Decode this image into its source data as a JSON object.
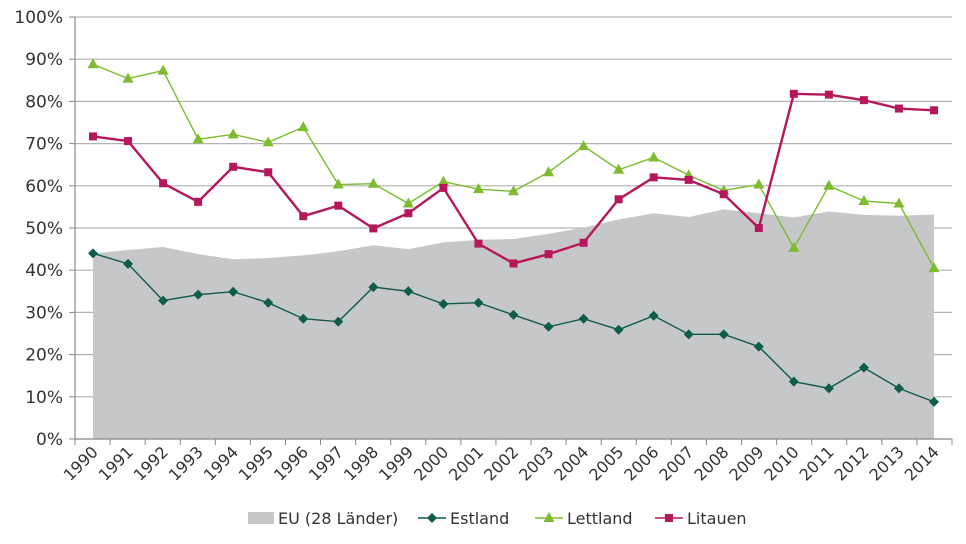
{
  "chart_data": {
    "type": "line",
    "title": "",
    "xlabel": "",
    "ylabel": "",
    "ylim": [
      0,
      100
    ],
    "y_ticks": [
      "0%",
      "10%",
      "20%",
      "30%",
      "40%",
      "50%",
      "60%",
      "70%",
      "80%",
      "90%",
      "100%"
    ],
    "grid": true,
    "legend_position": "bottom",
    "categories": [
      "1990",
      "1991",
      "1992",
      "1993",
      "1994",
      "1995",
      "1996",
      "1997",
      "1998",
      "1999",
      "2000",
      "2001",
      "2002",
      "2003",
      "2004",
      "2005",
      "2006",
      "2007",
      "2008",
      "2009",
      "2010",
      "2011",
      "2012",
      "2013",
      "2014"
    ],
    "series": [
      {
        "name": "EU (28 Länder)",
        "kind": "area",
        "color": "#c6c7c8",
        "values": [
          44.0,
          44.8,
          45.5,
          43.8,
          42.6,
          42.9,
          43.5,
          44.5,
          45.9,
          45.0,
          46.6,
          47.2,
          47.4,
          48.6,
          50.1,
          52.0,
          53.5,
          52.6,
          54.4,
          53.5,
          52.5,
          53.9,
          53.1,
          52.9,
          53.2
        ]
      },
      {
        "name": "Estland",
        "kind": "line",
        "marker": "diamond",
        "color": "#0e5c4a",
        "values": [
          44.0,
          41.5,
          32.8,
          34.2,
          34.9,
          32.3,
          28.5,
          27.8,
          36.0,
          35.0,
          32.0,
          32.3,
          29.4,
          26.6,
          28.5,
          25.9,
          29.2,
          24.8,
          24.8,
          21.9,
          13.6,
          12.0,
          16.9,
          12.0,
          8.8
        ]
      },
      {
        "name": "Lettland",
        "kind": "line",
        "marker": "triangle",
        "color": "#7cbc2e",
        "values": [
          88.8,
          85.4,
          87.3,
          71.0,
          72.2,
          70.3,
          73.9,
          60.3,
          60.5,
          55.8,
          61.0,
          59.2,
          58.7,
          63.2,
          69.4,
          63.8,
          66.7,
          62.5,
          58.9,
          60.3,
          45.3,
          60.0,
          56.4,
          55.8,
          40.5
        ]
      },
      {
        "name": "Litauen",
        "kind": "line",
        "marker": "square",
        "color": "#b5175a",
        "values": [
          71.7,
          70.6,
          60.6,
          56.2,
          64.5,
          63.2,
          52.8,
          55.3,
          49.9,
          53.5,
          59.5,
          46.3,
          41.6,
          43.8,
          46.5,
          56.8,
          62.0,
          61.4,
          58.0,
          50.0,
          81.8,
          81.6,
          80.3,
          78.3,
          77.9
        ]
      }
    ]
  }
}
